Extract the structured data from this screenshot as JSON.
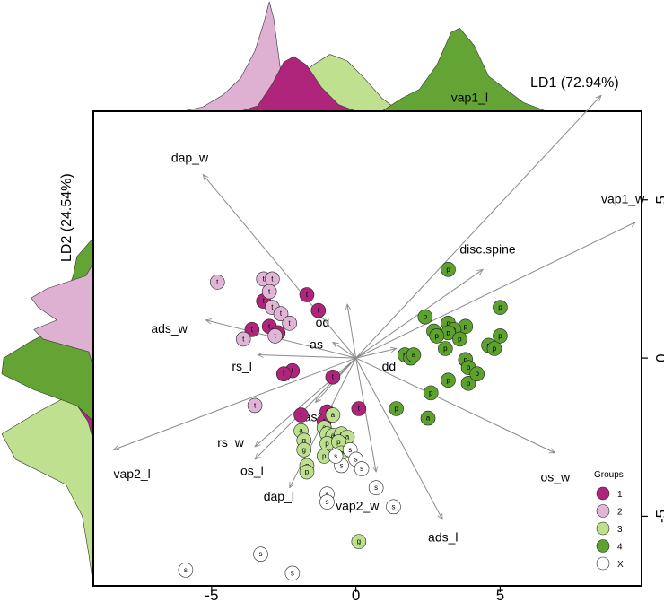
{
  "chart_data": {
    "type": "scatter",
    "title": "",
    "xlabel": "LD1 (72.94%)",
    "ylabel": "LD2 (24.54%)",
    "xlim": [
      -9.1,
      9.9
    ],
    "ylim": [
      -7.2,
      7.8
    ],
    "x_ticks": [
      "-5",
      "0",
      "5"
    ],
    "x_tick_values": [
      -5,
      0,
      5
    ],
    "y_ticks": [
      "5",
      "0",
      "-5"
    ],
    "y_tick_values": [
      5,
      0,
      -5
    ],
    "colors": {
      "1": "#b0257c",
      "2": "#e2b5d6",
      "3": "#bde08f",
      "4": "#5da22e",
      "X": "#ffffff"
    },
    "density_colors": {
      "1": "#b0257c",
      "2": "#deb1d3",
      "3": "#bfe08e",
      "4": "#63a434"
    },
    "legend": {
      "title": "Groups",
      "placement": "bottom-right",
      "items": [
        "1",
        "2",
        "3",
        "4",
        "X"
      ]
    },
    "vectors": [
      {
        "name": "vap1_l",
        "x": 8.5,
        "y": 8.3
      },
      {
        "name": "vap1_w",
        "x": 9.7,
        "y": 4.3
      },
      {
        "name": "dap_w",
        "x": -5.3,
        "y": 5.8
      },
      {
        "name": "disc.spine",
        "x": 4.4,
        "y": 2.8
      },
      {
        "name": "od",
        "x": -0.3,
        "y": 1.7
      },
      {
        "name": "as",
        "x": -0.8,
        "y": 0.5
      },
      {
        "name": "ads_w",
        "x": -5.2,
        "y": 1.2
      },
      {
        "name": "rs_l",
        "x": -3.4,
        "y": 0.1
      },
      {
        "name": "dd",
        "x": 1.4,
        "y": 0.3
      },
      {
        "name": "vap2_l",
        "x": -8.4,
        "y": -2.9
      },
      {
        "name": "rs_w",
        "x": -3.5,
        "y": -2.8
      },
      {
        "name": "as2",
        "x": -1.4,
        "y": -1.4
      },
      {
        "name": "os_l",
        "x": -3.5,
        "y": -3.2
      },
      {
        "name": "dap_l",
        "x": -2.3,
        "y": -4.1
      },
      {
        "name": "vap2_w",
        "x": 0.7,
        "y": -3.6
      },
      {
        "name": "ads_l",
        "x": 3.0,
        "y": -5.1
      },
      {
        "name": "os_w",
        "x": 6.9,
        "y": -3.0
      }
    ],
    "vector_labels": [
      {
        "name": "vap1_l",
        "x": 3.3,
        "y": 8.1
      },
      {
        "name": "vap1_w",
        "x": 8.5,
        "y": 4.9
      },
      {
        "name": "dap_w",
        "x": -6.4,
        "y": 6.2
      },
      {
        "name": "disc.spine",
        "x": 3.6,
        "y": 3.3
      },
      {
        "name": "od",
        "x": -1.4,
        "y": 1.0
      },
      {
        "name": "as",
        "x": -1.6,
        "y": 0.3
      },
      {
        "name": "ads_w",
        "x": -7.1,
        "y": 0.8
      },
      {
        "name": "rs_l",
        "x": -4.3,
        "y": -0.4
      },
      {
        "name": "dd",
        "x": 0.9,
        "y": -0.4
      },
      {
        "name": "vap2_l",
        "x": -8.4,
        "y": -3.8
      },
      {
        "name": "rs_w",
        "x": -4.8,
        "y": -2.8
      },
      {
        "name": "as2",
        "x": -1.8,
        "y": -2.0
      },
      {
        "name": "os_l",
        "x": -4.0,
        "y": -3.7
      },
      {
        "name": "dap_l",
        "x": -3.2,
        "y": -4.5
      },
      {
        "name": "vap2_w",
        "x": -0.7,
        "y": -4.8
      },
      {
        "name": "ads_l",
        "x": 2.5,
        "y": -5.8
      },
      {
        "name": "os_w",
        "x": 6.4,
        "y": -3.9
      }
    ],
    "points": [
      {
        "g": "1",
        "l": "t",
        "x": -1.7,
        "y": 2.0
      },
      {
        "g": "1",
        "l": "t",
        "x": -3.2,
        "y": 1.8
      },
      {
        "g": "1",
        "l": "t",
        "x": -1.3,
        "y": 1.5
      },
      {
        "g": "1",
        "l": "t",
        "x": -3.0,
        "y": 1.0
      },
      {
        "g": "1",
        "l": "t",
        "x": -3.6,
        "y": 0.9
      },
      {
        "g": "1",
        "l": "t",
        "x": -2.7,
        "y": 0.8
      },
      {
        "g": "1",
        "l": "t",
        "x": -2.2,
        "y": -0.4
      },
      {
        "g": "1",
        "l": "t",
        "x": -2.5,
        "y": -0.5
      },
      {
        "g": "1",
        "l": "t",
        "x": -0.8,
        "y": -0.6
      },
      {
        "g": "1",
        "l": "t",
        "x": -1.9,
        "y": -1.8
      },
      {
        "g": "1",
        "l": "t",
        "x": 0.1,
        "y": -1.6
      },
      {
        "g": "1",
        "l": "t",
        "x": -1.0,
        "y": -1.7
      },
      {
        "g": "1",
        "l": "t",
        "x": -1.1,
        "y": -2.0
      },
      {
        "g": "2",
        "l": "t",
        "x": -4.8,
        "y": 2.4
      },
      {
        "g": "2",
        "l": "t",
        "x": -3.2,
        "y": 2.5
      },
      {
        "g": "2",
        "l": "t",
        "x": -2.9,
        "y": 2.5
      },
      {
        "g": "2",
        "l": "t",
        "x": -3.0,
        "y": 2.1
      },
      {
        "g": "2",
        "l": "t",
        "x": -2.9,
        "y": 1.6
      },
      {
        "g": "2",
        "l": "t",
        "x": -2.6,
        "y": 1.4
      },
      {
        "g": "2",
        "l": "t",
        "x": -2.3,
        "y": 1.1
      },
      {
        "g": "2",
        "l": "t",
        "x": -3.9,
        "y": 0.6
      },
      {
        "g": "2",
        "l": "t",
        "x": -2.8,
        "y": 0.7
      },
      {
        "g": "2",
        "l": "t",
        "x": -3.5,
        "y": -1.5
      },
      {
        "g": "3",
        "l": "a",
        "x": -0.8,
        "y": -1.8
      },
      {
        "g": "3",
        "l": "a",
        "x": -1.1,
        "y": -2.2
      },
      {
        "g": "3",
        "l": "a",
        "x": -1.9,
        "y": -2.3
      },
      {
        "g": "3",
        "l": "a",
        "x": -1.0,
        "y": -2.4
      },
      {
        "g": "3",
        "l": "a",
        "x": -0.8,
        "y": -2.45
      },
      {
        "g": "3",
        "l": "a",
        "x": -0.5,
        "y": -2.4
      },
      {
        "g": "3",
        "l": "a",
        "x": -0.3,
        "y": -2.5
      },
      {
        "g": "3",
        "l": "p",
        "x": -1.0,
        "y": -2.7
      },
      {
        "g": "3",
        "l": "p",
        "x": -0.6,
        "y": -2.65
      },
      {
        "g": "3",
        "l": "g",
        "x": -1.8,
        "y": -2.6
      },
      {
        "g": "3",
        "l": "g",
        "x": -1.8,
        "y": -2.9
      },
      {
        "g": "3",
        "l": "g",
        "x": -1.7,
        "y": -3.4
      },
      {
        "g": "3",
        "l": "p",
        "x": -1.1,
        "y": -3.1
      },
      {
        "g": "3",
        "l": "p",
        "x": -0.5,
        "y": -3.0
      },
      {
        "g": "3",
        "l": "p",
        "x": -1.7,
        "y": -3.6
      },
      {
        "g": "3",
        "l": "g",
        "x": 0.1,
        "y": -5.8
      },
      {
        "g": "4",
        "l": "p",
        "x": 3.2,
        "y": 2.8
      },
      {
        "g": "4",
        "l": "p",
        "x": 5.0,
        "y": 1.6
      },
      {
        "g": "4",
        "l": "p",
        "x": 2.4,
        "y": 1.3
      },
      {
        "g": "4",
        "l": "p",
        "x": 3.2,
        "y": 1.1
      },
      {
        "g": "4",
        "l": "p",
        "x": 3.8,
        "y": 1.0
      },
      {
        "g": "4",
        "l": "p",
        "x": 2.7,
        "y": 0.85
      },
      {
        "g": "4",
        "l": "a",
        "x": 3.4,
        "y": 0.9
      },
      {
        "g": "4",
        "l": "p",
        "x": 3.2,
        "y": 0.8
      },
      {
        "g": "4",
        "l": "p",
        "x": 2.8,
        "y": 0.7
      },
      {
        "g": "4",
        "l": "p",
        "x": 3.6,
        "y": 0.6
      },
      {
        "g": "4",
        "l": "p",
        "x": 5.0,
        "y": 0.7
      },
      {
        "g": "4",
        "l": "p",
        "x": 4.6,
        "y": 0.4
      },
      {
        "g": "4",
        "l": "p",
        "x": 4.8,
        "y": 0.3
      },
      {
        "g": "4",
        "l": "p",
        "x": 3.1,
        "y": 0.3
      },
      {
        "g": "4",
        "l": "p",
        "x": 1.7,
        "y": 0.1
      },
      {
        "g": "4",
        "l": "p",
        "x": 1.9,
        "y": 0.0
      },
      {
        "g": "4",
        "l": "a",
        "x": 2.0,
        "y": 0.1
      },
      {
        "g": "4",
        "l": "p",
        "x": 3.8,
        "y": -0.05
      },
      {
        "g": "4",
        "l": "p",
        "x": 3.9,
        "y": -0.3
      },
      {
        "g": "4",
        "l": "p",
        "x": 3.2,
        "y": -0.7
      },
      {
        "g": "4",
        "l": "p",
        "x": 3.9,
        "y": -0.8
      },
      {
        "g": "4",
        "l": "p",
        "x": 4.2,
        "y": -0.5
      },
      {
        "g": "4",
        "l": "p",
        "x": 2.6,
        "y": -1.1
      },
      {
        "g": "4",
        "l": "p",
        "x": 1.4,
        "y": -1.6
      },
      {
        "g": "4",
        "l": "a",
        "x": 2.5,
        "y": -1.9
      },
      {
        "g": "X",
        "l": "s",
        "x": -0.2,
        "y": -2.9
      },
      {
        "g": "X",
        "l": "s",
        "x": 0.0,
        "y": -3.2
      },
      {
        "g": "X",
        "l": "s",
        "x": 0.2,
        "y": -3.5
      },
      {
        "g": "X",
        "l": "s",
        "x": -0.5,
        "y": -3.4
      },
      {
        "g": "X",
        "l": "s",
        "x": -0.7,
        "y": -3.1
      },
      {
        "g": "X",
        "l": "s",
        "x": 0.7,
        "y": -4.1
      },
      {
        "g": "X",
        "l": "s",
        "x": -1.0,
        "y": -4.3
      },
      {
        "g": "X",
        "l": "s",
        "x": -1.0,
        "y": -4.55
      },
      {
        "g": "X",
        "l": "s",
        "x": 1.3,
        "y": -4.7
      },
      {
        "g": "X",
        "l": "s",
        "x": -5.9,
        "y": -6.7
      },
      {
        "g": "X",
        "l": "s",
        "x": -3.3,
        "y": -6.2
      },
      {
        "g": "X",
        "l": "s",
        "x": -2.2,
        "y": -6.8
      }
    ],
    "x_density": {
      "1": [
        [
          -4.0,
          0
        ],
        [
          -3.4,
          0.05
        ],
        [
          -2.9,
          0.25
        ],
        [
          -2.5,
          0.45
        ],
        [
          -2.15,
          0.5
        ],
        [
          -1.7,
          0.42
        ],
        [
          -1.2,
          0.22
        ],
        [
          -0.6,
          0.06
        ],
        [
          0.0,
          0
        ]
      ],
      "2": [
        [
          -6.0,
          0
        ],
        [
          -5.3,
          0.04
        ],
        [
          -4.6,
          0.15
        ],
        [
          -4.0,
          0.3
        ],
        [
          -3.5,
          0.55
        ],
        [
          -3.2,
          0.8
        ],
        [
          -3.0,
          1.0
        ],
        [
          -2.85,
          0.85
        ],
        [
          -2.6,
          0.35
        ],
        [
          -2.25,
          0.08
        ],
        [
          -1.9,
          0
        ]
      ],
      "3": [
        [
          -6.0,
          0
        ],
        [
          -4.8,
          0.02
        ],
        [
          -3.4,
          0.08
        ],
        [
          -2.3,
          0.22
        ],
        [
          -1.5,
          0.42
        ],
        [
          -0.9,
          0.52
        ],
        [
          -0.3,
          0.46
        ],
        [
          0.3,
          0.3
        ],
        [
          0.9,
          0.12
        ],
        [
          1.5,
          0
        ]
      ],
      "4": [
        [
          0.9,
          0
        ],
        [
          1.6,
          0.12
        ],
        [
          2.2,
          0.2
        ],
        [
          2.8,
          0.42
        ],
        [
          3.3,
          0.72
        ],
        [
          3.6,
          0.76
        ],
        [
          4.1,
          0.6
        ],
        [
          4.6,
          0.32
        ],
        [
          5.1,
          0.22
        ],
        [
          5.8,
          0.08
        ],
        [
          6.6,
          0
        ]
      ]
    },
    "y_density": {
      "1": [
        [
          -2.6,
          0
        ],
        [
          -2.0,
          0.06
        ],
        [
          -1.4,
          0.2
        ],
        [
          -0.9,
          0.18
        ],
        [
          -0.4,
          0.1
        ],
        [
          0.4,
          0.08
        ],
        [
          1.2,
          0.05
        ],
        [
          2.0,
          0
        ]
      ],
      "2": [
        [
          -0.3,
          0
        ],
        [
          0.2,
          0.05
        ],
        [
          0.6,
          0.55
        ],
        [
          0.9,
          0.65
        ],
        [
          1.2,
          0.4
        ],
        [
          1.6,
          0.6
        ],
        [
          1.9,
          0.68
        ],
        [
          2.2,
          0.5
        ],
        [
          2.6,
          0.08
        ],
        [
          3.0,
          0
        ]
      ],
      "3": [
        [
          -7.2,
          0
        ],
        [
          -6.2,
          0.05
        ],
        [
          -5.0,
          0.12
        ],
        [
          -4.0,
          0.3
        ],
        [
          -3.2,
          0.85
        ],
        [
          -2.4,
          1.0
        ],
        [
          -1.7,
          0.6
        ],
        [
          -1.0,
          0.15
        ],
        [
          -0.3,
          0
        ]
      ],
      "4": [
        [
          -2.0,
          0
        ],
        [
          -1.5,
          0.18
        ],
        [
          -1.0,
          0.65
        ],
        [
          -0.5,
          1.0
        ],
        [
          0.0,
          0.98
        ],
        [
          0.5,
          0.7
        ],
        [
          1.0,
          0.35
        ],
        [
          1.5,
          0.4
        ],
        [
          2.0,
          0.3
        ],
        [
          2.6,
          0.22
        ],
        [
          3.2,
          0.18
        ],
        [
          3.8,
          0
        ]
      ]
    }
  }
}
